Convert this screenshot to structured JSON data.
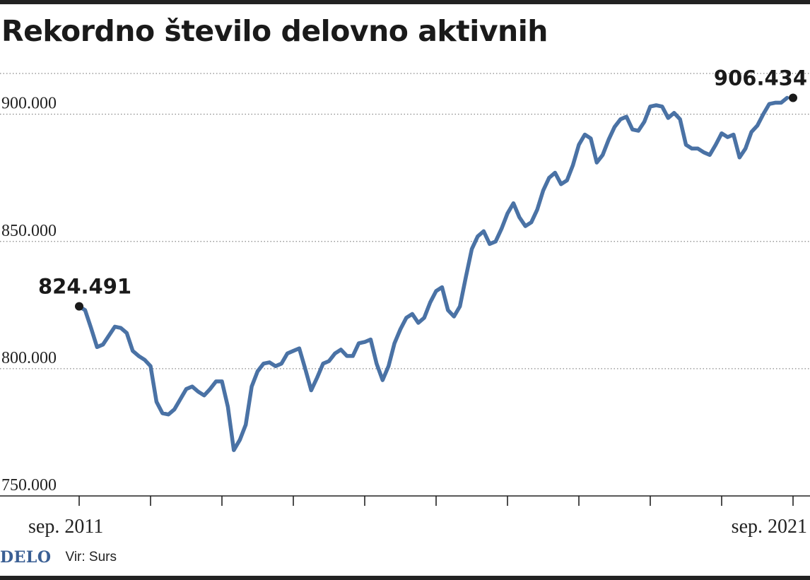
{
  "title": "Rekordno število delovno aktivnih",
  "footer": {
    "logo": "DELO",
    "source": "Vir: Surs"
  },
  "colors": {
    "line": "#4a72a5",
    "grid": "#888888",
    "text": "#1a1a1a",
    "logo": "#3a5f94"
  },
  "chart_data": {
    "type": "line",
    "title": "Rekordno število delovno aktivnih",
    "xlabel": "",
    "ylabel": "",
    "ylim": [
      750000,
      916000
    ],
    "y_ticks": [
      750000,
      800000,
      850000,
      900000
    ],
    "y_tick_labels": [
      "750.000",
      "800.000",
      "850.000",
      "900.000"
    ],
    "x_range": [
      "2011-09",
      "2021-09"
    ],
    "x_labels": [
      {
        "date": "2011-09",
        "label": "sep. 2011"
      },
      {
        "date": "2021-09",
        "label": "sep. 2021"
      }
    ],
    "grid": true,
    "grid_style": "dotted horizontal",
    "annotations": [
      {
        "date": "2011-09",
        "value": 824491,
        "label": "824.491"
      },
      {
        "date": "2021-09",
        "value": 906434,
        "label": "906.434"
      }
    ],
    "series": [
      {
        "frequency": "monthly",
        "start": "2011-09",
        "values": [
          824491,
          823000,
          816000,
          808500,
          809500,
          813000,
          816500,
          816000,
          814000,
          807000,
          805000,
          803500,
          801000,
          787000,
          782500,
          782000,
          784000,
          788000,
          792000,
          793000,
          791000,
          789500,
          792000,
          795000,
          795000,
          785000,
          768000,
          772000,
          778000,
          793000,
          799000,
          802000,
          802500,
          801000,
          802000,
          806000,
          807000,
          808000,
          800000,
          791500,
          796500,
          802000,
          803000,
          806000,
          807500,
          805000,
          805000,
          810000,
          810500,
          811500,
          802000,
          795500,
          801000,
          810000,
          815500,
          820000,
          821500,
          818000,
          820000,
          826000,
          830500,
          832000,
          823000,
          820500,
          824500,
          836000,
          847000,
          852000,
          854000,
          849000,
          850000,
          855000,
          861000,
          865000,
          859500,
          856000,
          857500,
          862500,
          870000,
          875000,
          877000,
          872500,
          874000,
          880000,
          888000,
          892000,
          890500,
          881000,
          884000,
          890000,
          895000,
          898000,
          899000,
          894000,
          893500,
          897000,
          903000,
          903500,
          903000,
          898500,
          900500,
          898000,
          888000,
          886500,
          886500,
          885000,
          884000,
          888000,
          892500,
          891000,
          892000,
          883000,
          886500,
          893000,
          895500,
          900000,
          904000,
          904500,
          904500,
          906434
        ]
      }
    ]
  }
}
